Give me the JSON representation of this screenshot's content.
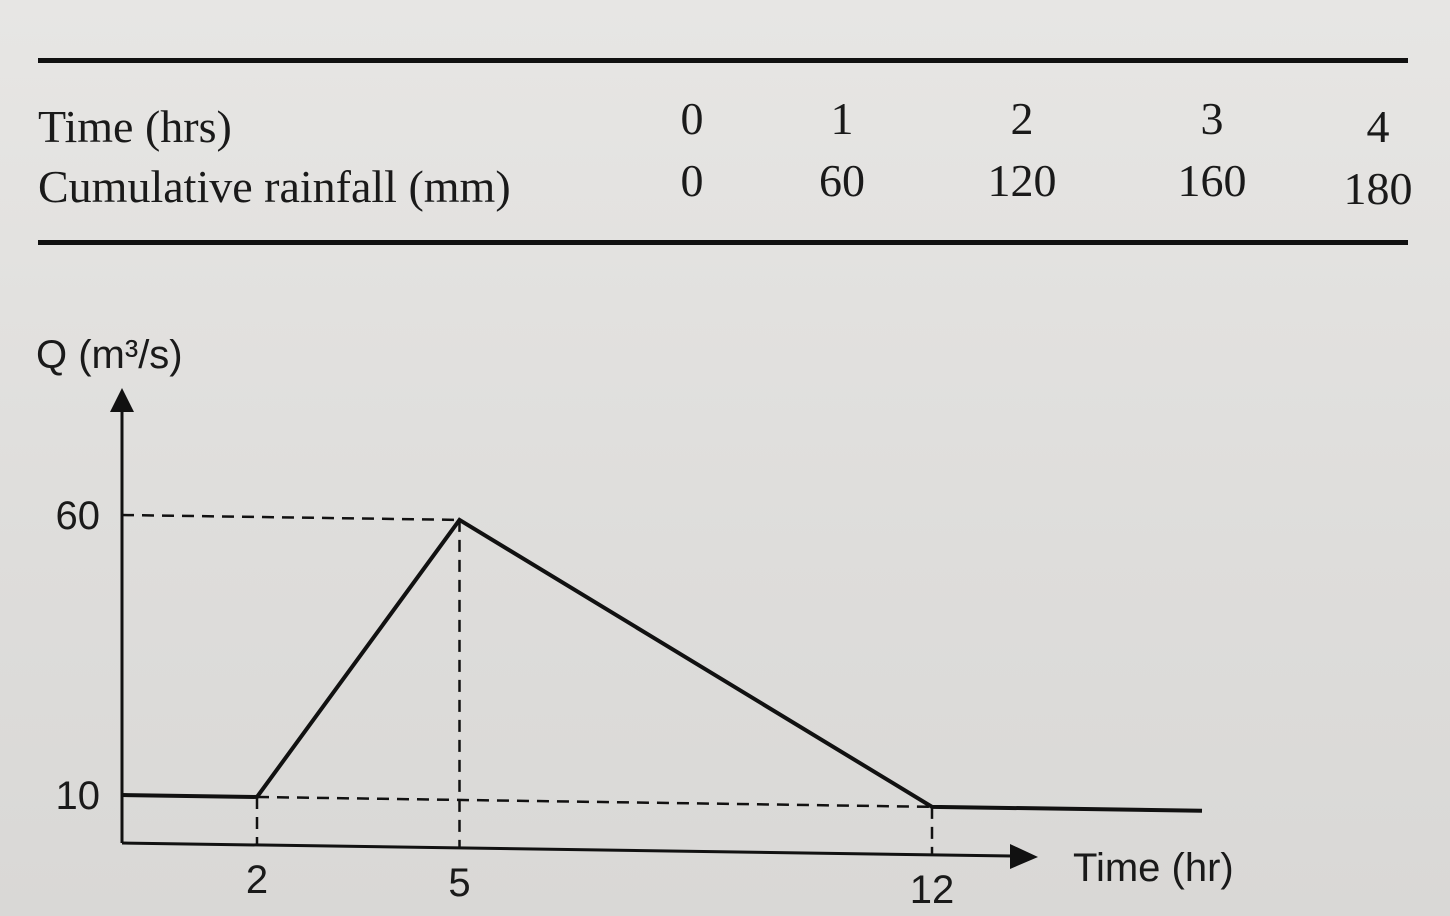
{
  "table": {
    "row_labels": [
      "Time (hrs)",
      "Cumulative rainfall (mm)"
    ],
    "time": [
      "0",
      "1",
      "2",
      "3",
      "4"
    ],
    "rainfall": [
      "0",
      "60",
      "120",
      "160",
      "180"
    ]
  },
  "chart_data": {
    "type": "line",
    "ylabel": "Q (m³/s)",
    "xlabel": "Time (hr)",
    "y_ticks": [
      "60",
      "10"
    ],
    "x_ticks": [
      "2",
      "5",
      "12"
    ],
    "series": [
      {
        "x": [
          0,
          2,
          5,
          12,
          16
        ],
        "y": [
          10,
          10,
          60,
          10,
          10
        ]
      }
    ],
    "baseflow": {
      "x": [
        2,
        12
      ],
      "y": [
        10,
        10
      ]
    },
    "reference_lines": [
      {
        "x": [
          0,
          5
        ],
        "y": [
          60,
          60
        ]
      },
      {
        "x": [
          5,
          5
        ],
        "y": [
          60,
          0
        ]
      },
      {
        "x": [
          2,
          2
        ],
        "y": [
          10,
          0
        ]
      },
      {
        "x": [
          12,
          12
        ],
        "y": [
          10,
          0
        ]
      }
    ]
  }
}
